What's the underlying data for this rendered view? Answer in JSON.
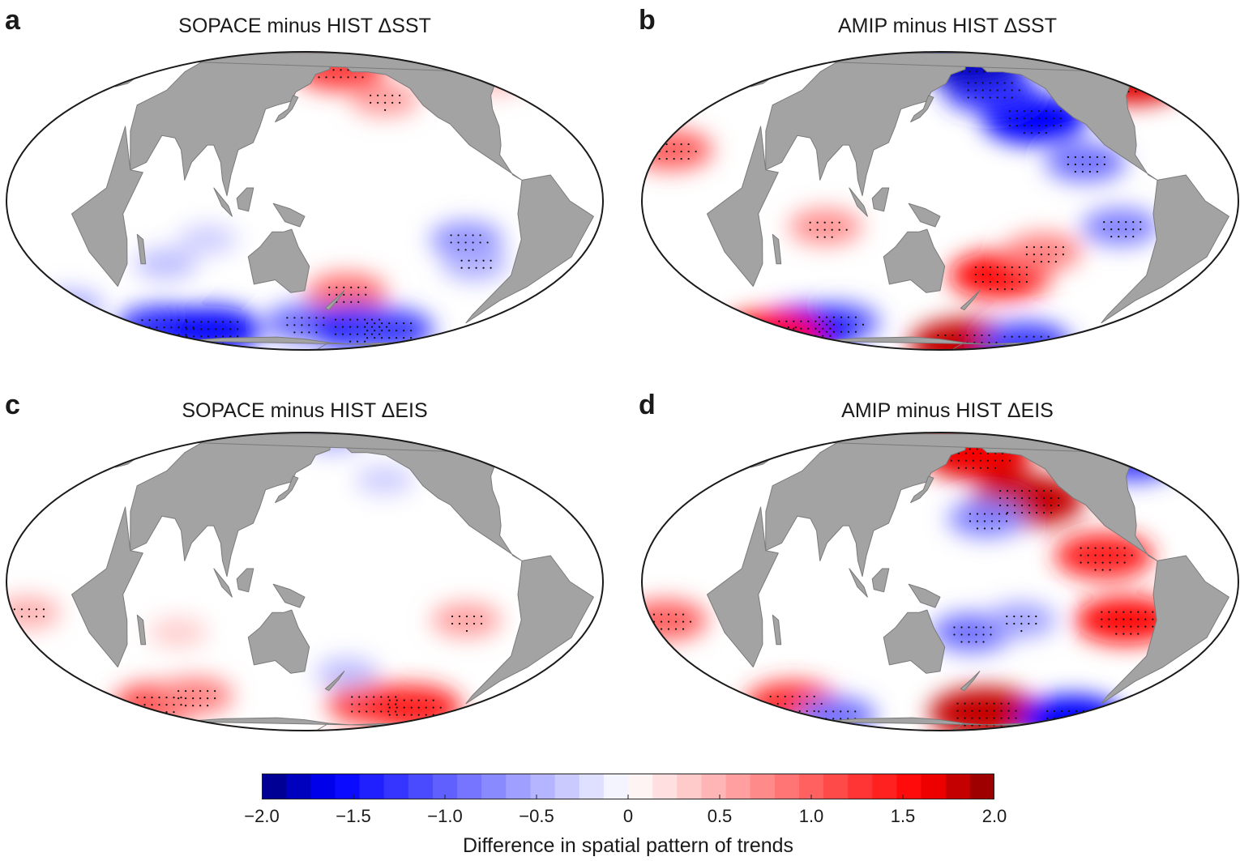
{
  "chart_data": [
    {
      "type": "heatmap",
      "panel": "a",
      "title": "SOPACE minus HIST ΔSST",
      "projection": "Mollweide",
      "stippling": "significant differences",
      "features": [
        {
          "lon": -150,
          "lat": 43,
          "value": 0.6
        },
        {
          "lon": -175,
          "lat": 62,
          "value": 1.2
        },
        {
          "lon": 60,
          "lat": -25,
          "value": -0.4
        },
        {
          "lon": 90,
          "lat": -15,
          "value": -0.3
        },
        {
          "lon": -110,
          "lat": -15,
          "value": -0.7
        },
        {
          "lon": -100,
          "lat": -25,
          "value": -0.5
        },
        {
          "lon": 180,
          "lat": -38,
          "value": 0.9
        },
        {
          "lon": 150,
          "lat": -55,
          "value": -0.9
        },
        {
          "lon": -160,
          "lat": -58,
          "value": -1.4
        },
        {
          "lon": -130,
          "lat": -60,
          "value": -1.2
        },
        {
          "lon": 20,
          "lat": -58,
          "value": -1.3
        },
        {
          "lon": 60,
          "lat": -60,
          "value": -1.5
        },
        {
          "lon": -30,
          "lat": -45,
          "value": -0.5
        },
        {
          "lon": -40,
          "lat": 55,
          "value": 0.4
        }
      ]
    },
    {
      "type": "heatmap",
      "panel": "b",
      "title": "AMIP minus HIST ΔSST",
      "projection": "Mollweide",
      "stippling": "significant differences",
      "features": [
        {
          "lon": -145,
          "lat": 33,
          "value": -1.6
        },
        {
          "lon": -170,
          "lat": 48,
          "value": -1.3
        },
        {
          "lon": -120,
          "lat": 15,
          "value": -0.9
        },
        {
          "lon": -100,
          "lat": -10,
          "value": -0.8
        },
        {
          "lon": -175,
          "lat": 72,
          "value": -1.8
        },
        {
          "lon": -40,
          "lat": 55,
          "value": 1.7
        },
        {
          "lon": -20,
          "lat": 20,
          "value": 1.0
        },
        {
          "lon": 80,
          "lat": -10,
          "value": 0.7
        },
        {
          "lon": -170,
          "lat": -30,
          "value": 1.5
        },
        {
          "lon": -145,
          "lat": -20,
          "value": 0.8
        },
        {
          "lon": 60,
          "lat": -55,
          "value": -1.0
        },
        {
          "lon": 20,
          "lat": -60,
          "value": -1.6
        },
        {
          "lon": -175,
          "lat": -75,
          "value": 1.8
        },
        {
          "lon": -100,
          "lat": -73,
          "value": -1.2
        },
        {
          "lon": -30,
          "lat": -65,
          "value": 1.6
        }
      ]
    },
    {
      "type": "heatmap",
      "panel": "c",
      "title": "SOPACE minus HIST ΔEIS",
      "projection": "Mollweide",
      "stippling": "significant differences",
      "features": [
        {
          "lon": -110,
          "lat": -15,
          "value": 0.6
        },
        {
          "lon": -20,
          "lat": -12,
          "value": 0.5
        },
        {
          "lon": 70,
          "lat": -20,
          "value": 0.3
        },
        {
          "lon": -150,
          "lat": 43,
          "value": -0.3
        },
        {
          "lon": -150,
          "lat": -55,
          "value": 1.2
        },
        {
          "lon": -110,
          "lat": -58,
          "value": 1.4
        },
        {
          "lon": 20,
          "lat": -55,
          "value": 1.1
        },
        {
          "lon": 60,
          "lat": -50,
          "value": 0.8
        },
        {
          "lon": 180,
          "lat": -38,
          "value": -0.4
        },
        {
          "lon": -170,
          "lat": 78,
          "value": -0.5
        }
      ]
    },
    {
      "type": "heatmap",
      "panel": "d",
      "title": "AMIP minus HIST ΔEIS",
      "projection": "Mollweide",
      "stippling": "significant differences",
      "features": [
        {
          "lon": -150,
          "lat": 33,
          "value": 1.8
        },
        {
          "lon": -175,
          "lat": 58,
          "value": 1.7
        },
        {
          "lon": -110,
          "lat": 10,
          "value": 1.4
        },
        {
          "lon": -95,
          "lat": -15,
          "value": 1.5
        },
        {
          "lon": -180,
          "lat": 25,
          "value": -0.8
        },
        {
          "lon": 170,
          "lat": -20,
          "value": -0.9
        },
        {
          "lon": -160,
          "lat": -15,
          "value": -0.6
        },
        {
          "lon": -20,
          "lat": -15,
          "value": 1.0
        },
        {
          "lon": -40,
          "lat": 55,
          "value": -1.2
        },
        {
          "lon": 20,
          "lat": -55,
          "value": 1.3
        },
        {
          "lon": -165,
          "lat": -62,
          "value": 1.8
        },
        {
          "lon": -60,
          "lat": -68,
          "value": -1.6
        },
        {
          "lon": 40,
          "lat": -65,
          "value": -0.9
        },
        {
          "lon": -160,
          "lat": 78,
          "value": 1.6
        }
      ]
    }
  ],
  "panels": [
    {
      "letter": "a",
      "title": "SOPACE minus HIST ΔSST"
    },
    {
      "letter": "b",
      "title": "AMIP minus HIST ΔSST"
    },
    {
      "letter": "c",
      "title": "SOPACE minus HIST ΔEIS"
    },
    {
      "letter": "d",
      "title": "AMIP minus HIST ΔEIS"
    }
  ],
  "colorbar": {
    "title": "Difference in spatial pattern of trends",
    "range": [
      -2.0,
      2.0
    ],
    "levels": 30,
    "tick_labels": [
      "−2.0",
      "−1.5",
      "−1.0",
      "−0.5",
      "0",
      "0.5",
      "1.0",
      "1.5",
      "2.0"
    ],
    "tick_values": [
      -2.0,
      -1.5,
      -1.0,
      -0.5,
      0,
      0.5,
      1.0,
      1.5,
      2.0
    ],
    "colors": {
      "min": "#00007f",
      "neg": "#0000ff",
      "zero": "#ffffff",
      "pos": "#ff0000",
      "max": "#8b0000"
    }
  },
  "map_style": {
    "land": "#a3a3a3",
    "coast": "#7a7a7a",
    "frame": "#1a1a1a",
    "stipple": "#111111"
  }
}
